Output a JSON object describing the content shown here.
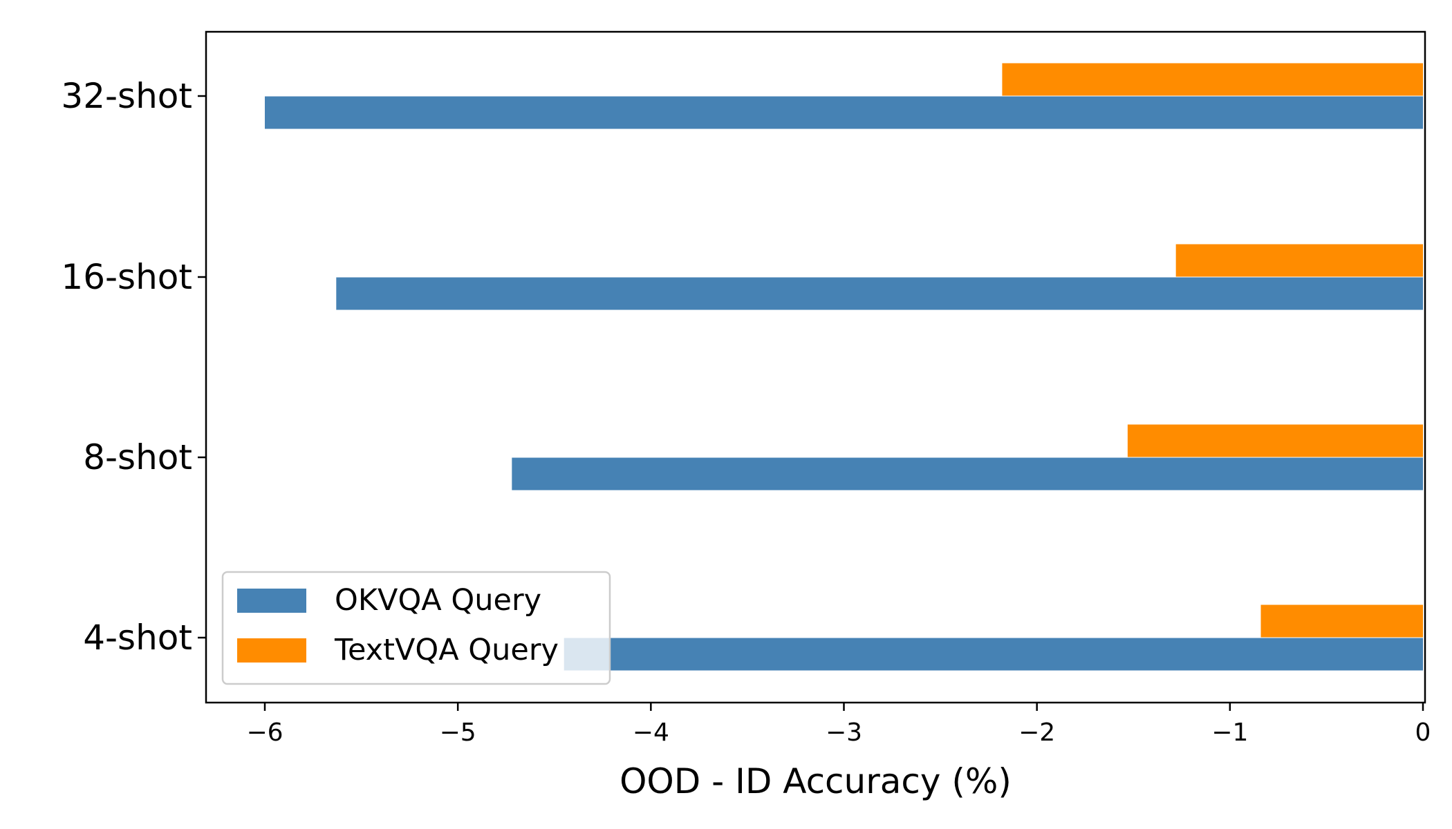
{
  "chart_data": {
    "type": "bar",
    "orientation": "horizontal",
    "title": "",
    "xlabel": "OOD - ID Accuracy (%)",
    "ylabel": "",
    "categories": [
      "32-shot",
      "16-shot",
      "8-shot",
      "4-shot"
    ],
    "series": [
      {
        "name": "TextVQA Query",
        "color": "#ff8c00",
        "values": [
          -2.18,
          -1.28,
          -1.53,
          -0.84
        ]
      },
      {
        "name": "OKVQA Query",
        "color": "#4682b4",
        "values": [
          -6.0,
          -5.63,
          -4.72,
          -4.45
        ]
      }
    ],
    "xlim": [
      -6.3,
      0.0
    ],
    "xticks": [
      -6,
      -5,
      -4,
      -3,
      -2,
      -1,
      0
    ],
    "xtick_labels": [
      "−6",
      "−5",
      "−4",
      "−3",
      "−2",
      "−1",
      "0"
    ],
    "grid": false,
    "legend": {
      "placement": "lower-left",
      "entries": [
        {
          "label": "OKVQA Query",
          "color": "#4682b4"
        },
        {
          "label": "TextVQA Query",
          "color": "#ff8c00"
        }
      ]
    }
  }
}
